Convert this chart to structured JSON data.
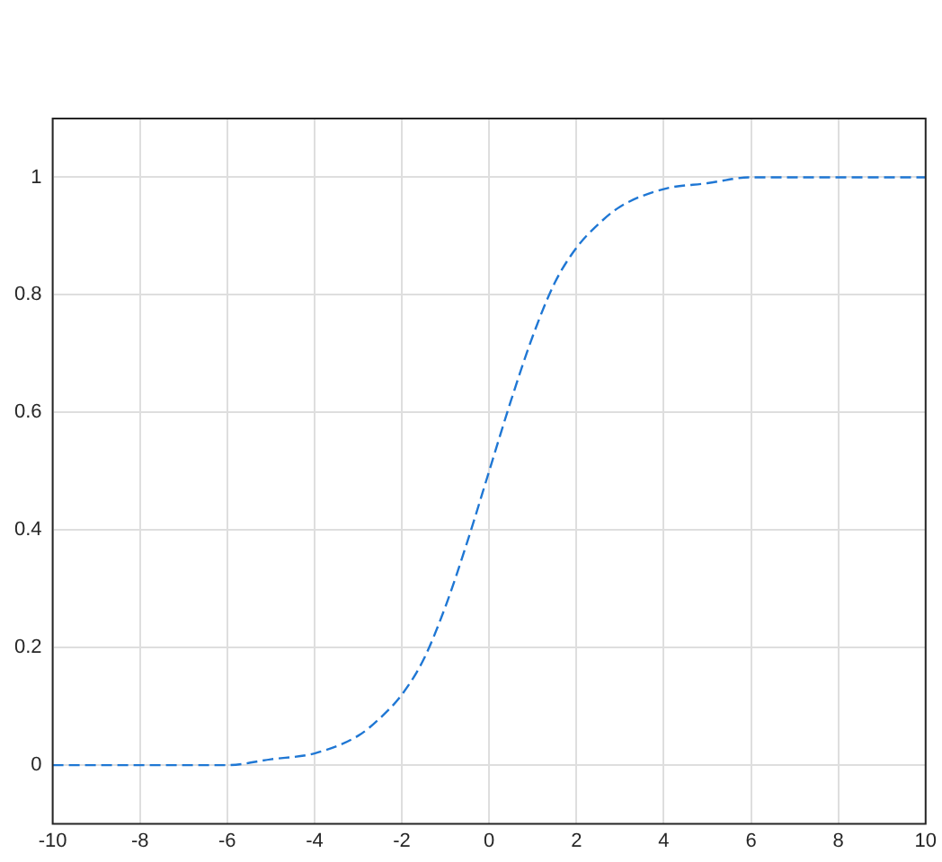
{
  "chart_data": {
    "type": "line",
    "x": [
      -10,
      -8,
      -6,
      -5,
      -4,
      -3,
      -2.5,
      -2,
      -1.5,
      -1,
      -0.5,
      0,
      0.5,
      1,
      1.5,
      2,
      2.5,
      3,
      4,
      5,
      6,
      8,
      10
    ],
    "series": [
      {
        "color": "#1f77d4",
        "values": [
          0,
          0,
          0,
          0.01,
          0.02,
          0.05,
          0.08,
          0.12,
          0.18,
          0.27,
          0.38,
          0.5,
          0.62,
          0.73,
          0.82,
          0.88,
          0.92,
          0.95,
          0.98,
          0.99,
          1,
          1,
          1
        ]
      }
    ],
    "xlim": [
      -10,
      10
    ],
    "xticks": [
      -10,
      -8,
      -6,
      -4,
      -2,
      0,
      2,
      4,
      6,
      8,
      10
    ],
    "ylim": [
      -0.1,
      1.1
    ],
    "yticks": [
      0,
      0.2,
      0.4,
      0.6,
      0.8,
      1
    ],
    "grid": true,
    "legend": false,
    "marker": "none",
    "line_style": "dashed"
  }
}
